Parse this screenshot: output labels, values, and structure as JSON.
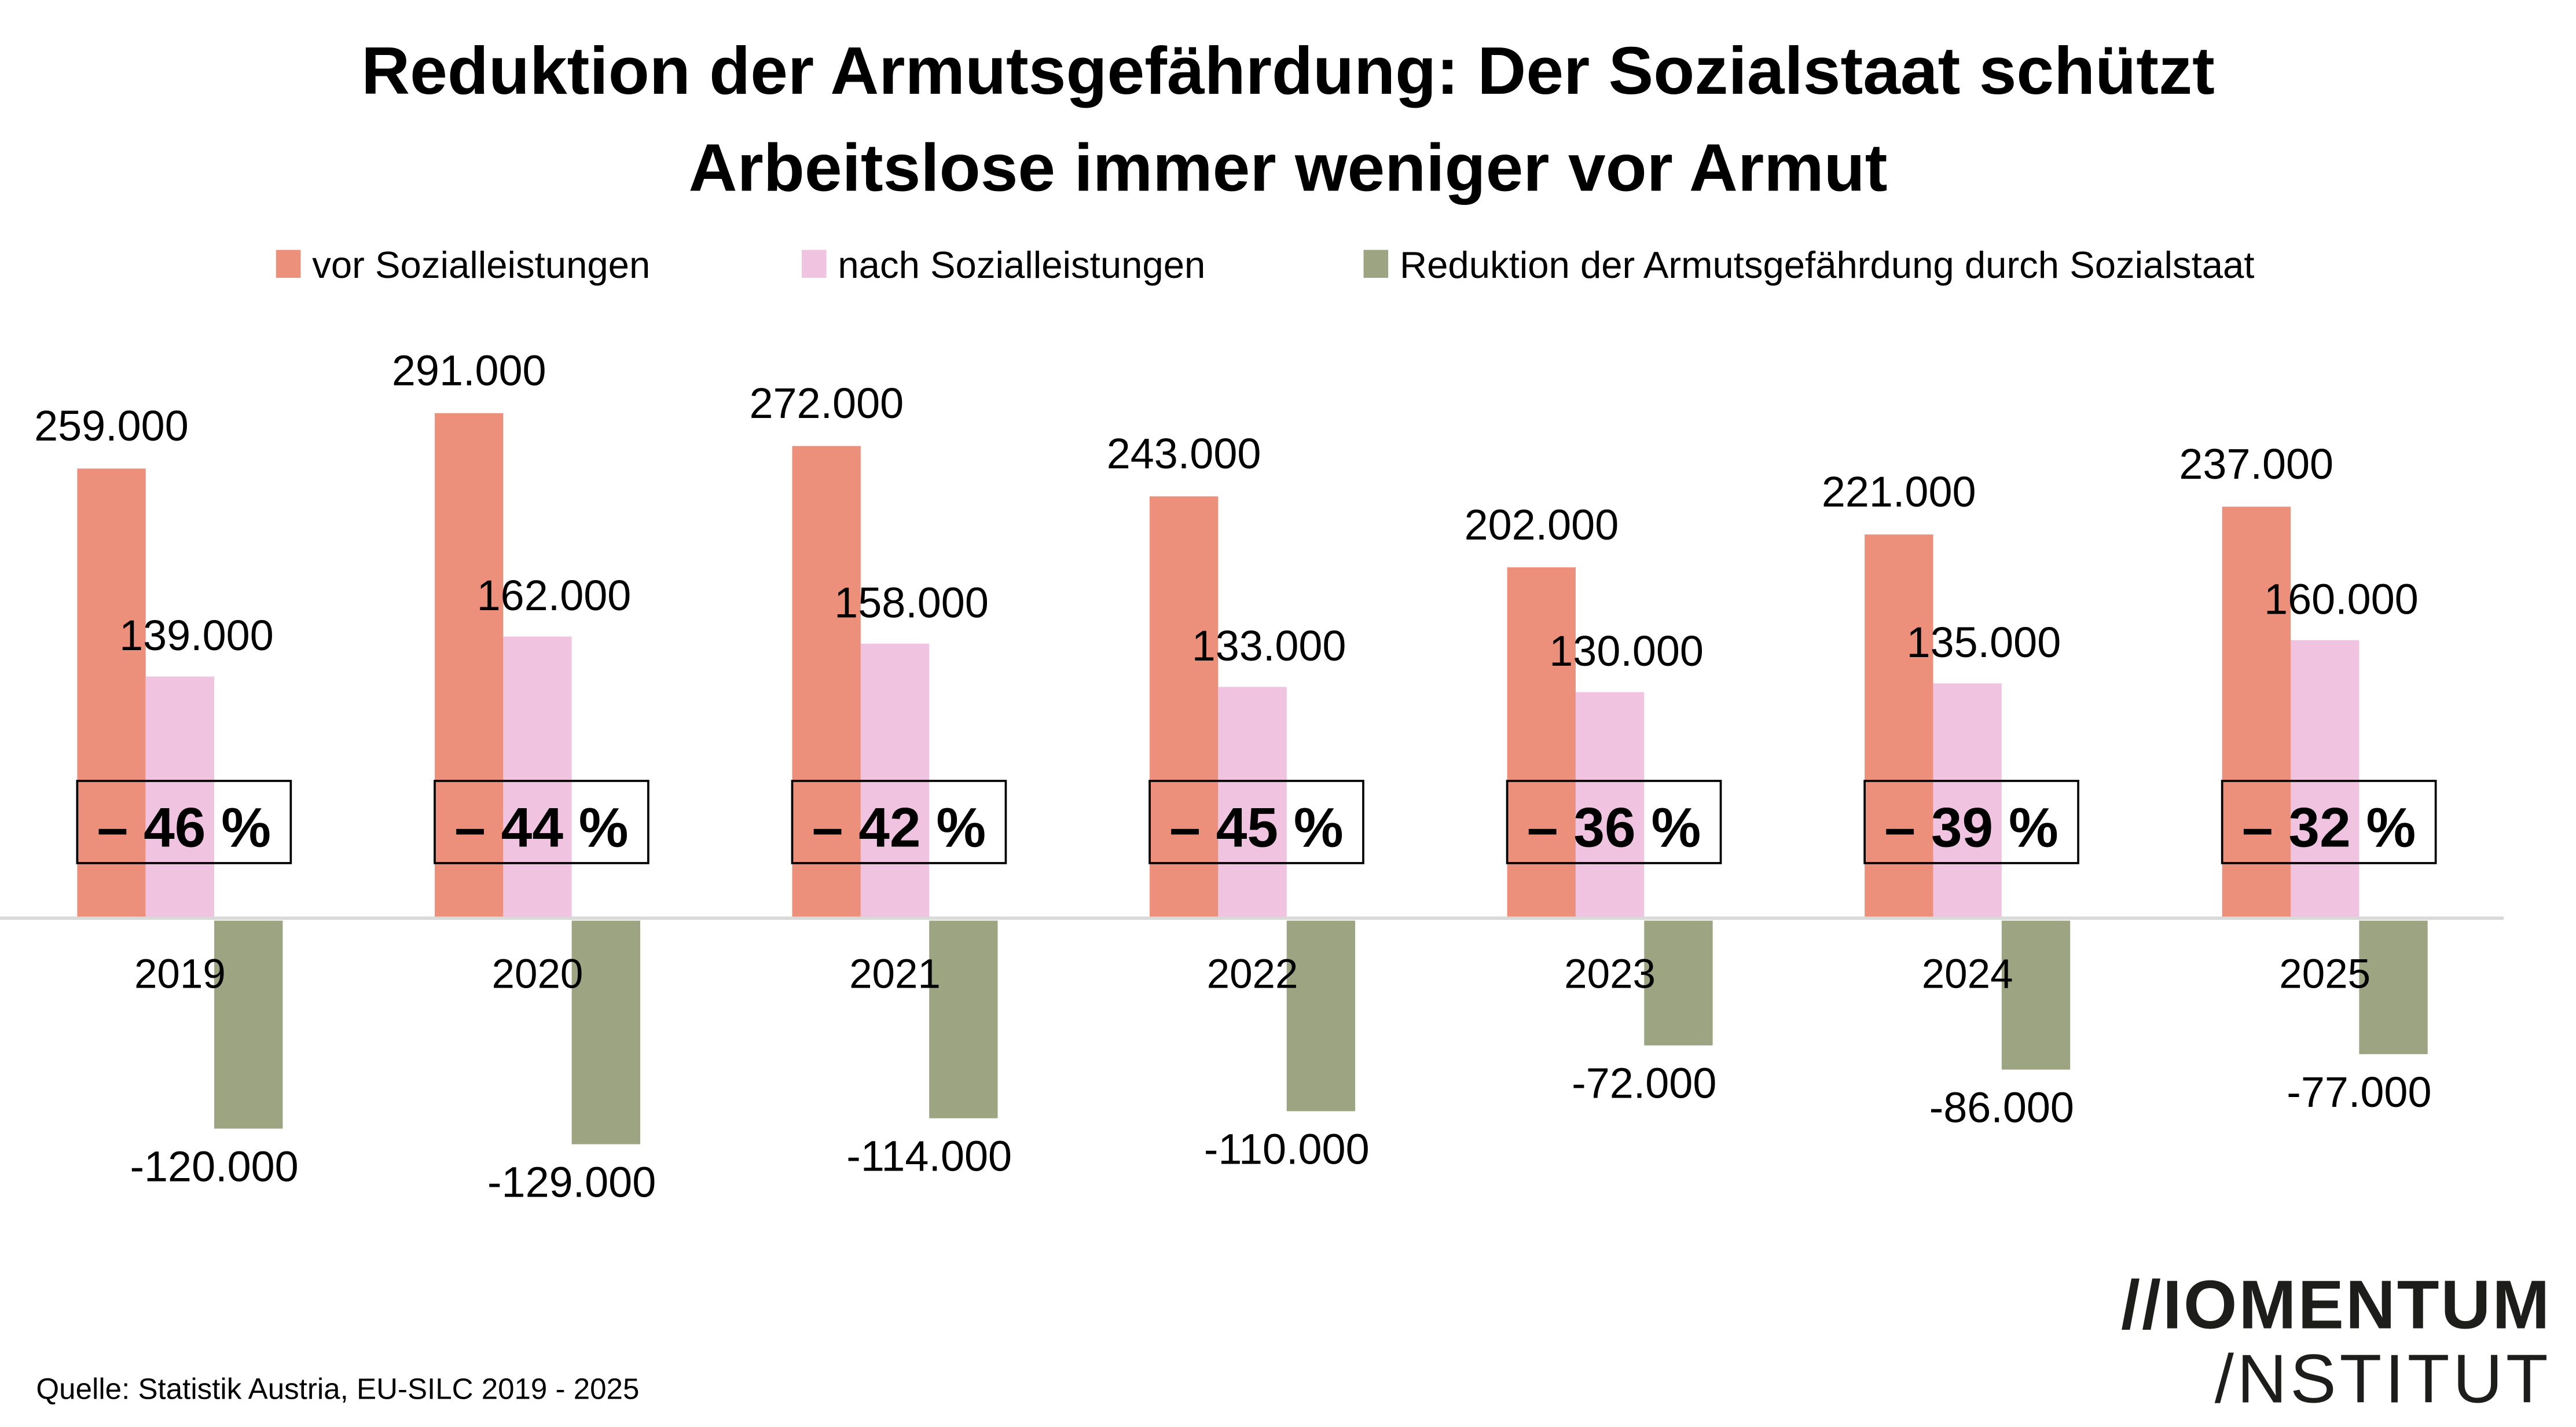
{
  "title_lines": [
    "Reduktion der Armutsgefährdung: Der Sozialstaat schützt",
    "Arbeitslose immer weniger vor Armut"
  ],
  "legend": [
    {
      "label": "vor Sozialleistungen",
      "color": "#EC907B"
    },
    {
      "label": "nach Sozialleistungen",
      "color": "#F0C4E0"
    },
    {
      "label": "Reduktion der Armutsgefährdung durch Sozialstaat",
      "color": "#9DA482"
    }
  ],
  "source": "Quelle: Statistik Austria, EU-SILC 2019 - 2025",
  "logo": {
    "line1": "//IOMENTUM",
    "line2": "/NSTITUT"
  },
  "colors": {
    "baseline": "#d9d9d9",
    "box_border": "#000000"
  },
  "chart_data": {
    "type": "bar",
    "title": "Reduktion der Armutsgefährdung: Der Sozialstaat schützt Arbeitslose immer weniger vor Armut",
    "xlabel": "",
    "ylabel": "",
    "categories": [
      "2019",
      "2020",
      "2021",
      "2022",
      "2023",
      "2024",
      "2025"
    ],
    "series": [
      {
        "name": "vor Sozialleistungen",
        "values": [
          259000,
          291000,
          272000,
          243000,
          202000,
          221000,
          237000
        ],
        "labels": [
          "259.000",
          "291.000",
          "272.000",
          "243.000",
          "202.000",
          "221.000",
          "237.000"
        ]
      },
      {
        "name": "nach Sozialleistungen",
        "values": [
          139000,
          162000,
          158000,
          133000,
          130000,
          135000,
          160000
        ],
        "labels": [
          "139.000",
          "162.000",
          "158.000",
          "133.000",
          "130.000",
          "135.000",
          "160.000"
        ]
      },
      {
        "name": "Reduktion der Armutsgefährdung durch Sozialstaat",
        "values": [
          -120000,
          -129000,
          -114000,
          -110000,
          -72000,
          -86000,
          -77000
        ],
        "labels": [
          "-120.000",
          "-129.000",
          "-114.000",
          "-110.000",
          "-72.000",
          "-86.000",
          "-77.000"
        ]
      }
    ],
    "annotations": [
      "– 46 %",
      "– 44 %",
      "– 42 %",
      "– 45 %",
      "– 36 %",
      "– 39 %",
      "– 32 %"
    ],
    "annotation_values_percent": [
      -46,
      -44,
      -42,
      -45,
      -36,
      -39,
      -32
    ],
    "ylim": [
      -150000,
      300000
    ],
    "grid": false,
    "legend_position": "top"
  }
}
